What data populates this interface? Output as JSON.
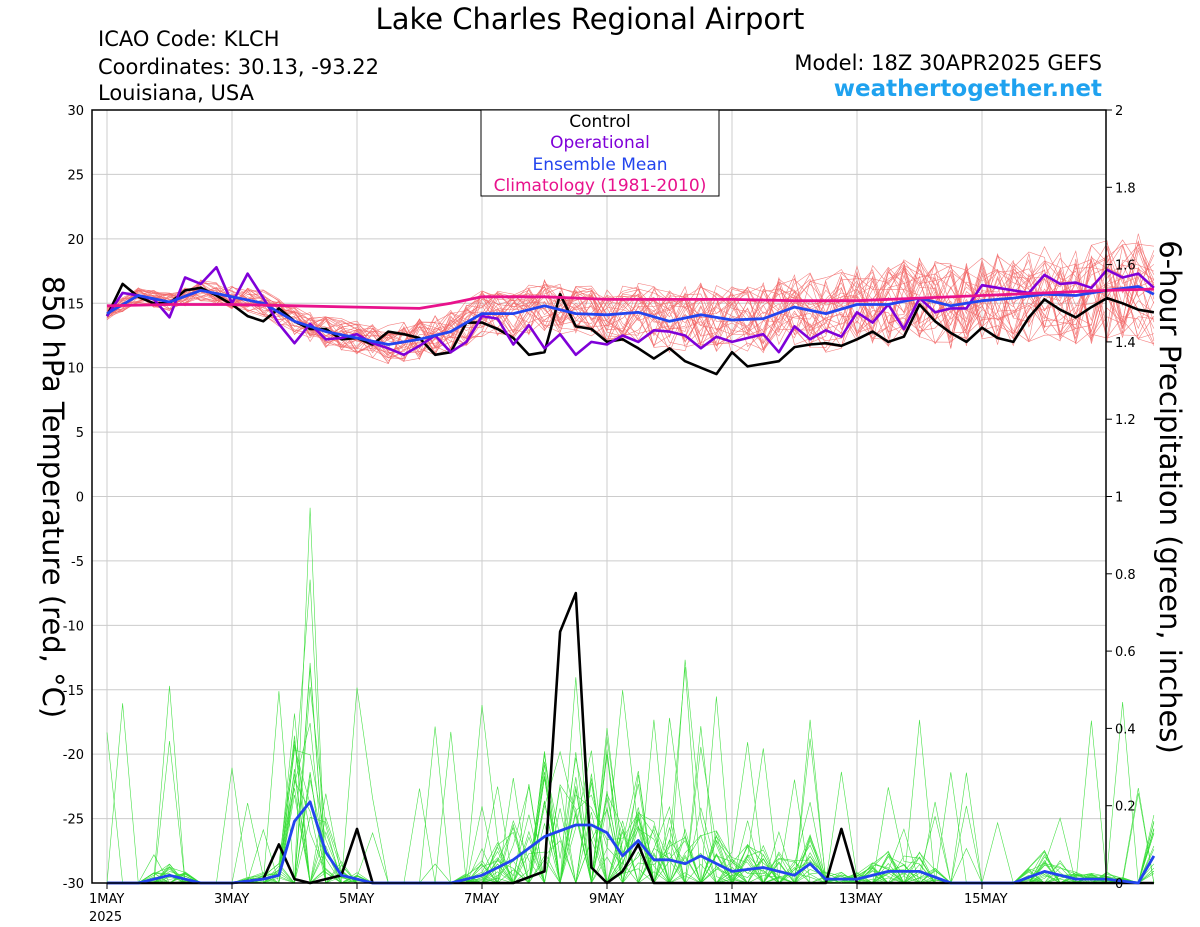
{
  "header": {
    "title": "Lake Charles Regional Airport",
    "icao": "ICAO Code: KLCH",
    "coordinates": "Coordinates: 30.13, -93.22",
    "location": "Louisiana, USA",
    "model": "Model: 18Z 30APR2025 GEFS",
    "site": "weathertogether.net"
  },
  "colors": {
    "control": "#000000",
    "operational": "#7f00d8",
    "ensemble_mean": "#2244ee",
    "climatology": "#e8128c",
    "members_temp": "#f26a6a",
    "members_precip": "#33dd33",
    "site": "#1fa2ef"
  },
  "chart_data": {
    "type": "line",
    "title": "Lake Charles Regional Airport",
    "ylabel": "850 hPa Temperature (red, °C)",
    "y2label": "6-hour Precipitation (green, inches)",
    "ylim": [
      -30,
      30
    ],
    "y2lim": [
      0,
      2
    ],
    "yticks": [
      "30",
      "25",
      "20",
      "15",
      "10",
      "5",
      "0",
      "-5",
      "-10",
      "-15",
      "-20",
      "-25",
      "-30"
    ],
    "y2ticks": [
      "2",
      "1.8",
      "1.6",
      "1.4",
      "1.2",
      "1",
      "0.8",
      "0.6",
      "0.4",
      "0.2",
      "0"
    ],
    "xticks": [
      "1MAY",
      "3MAY",
      "5MAY",
      "7MAY",
      "9MAY",
      "11MAY",
      "13MAY",
      "15MAY"
    ],
    "xyear": "2025",
    "xrange_days": [
      0,
      16
    ],
    "grid": true,
    "legend_position": "top-center",
    "legend": [
      {
        "name": "Control",
        "color": "#000000"
      },
      {
        "name": "Operational",
        "color": "#7f00d8"
      },
      {
        "name": "Ensemble Mean",
        "color": "#2244ee"
      },
      {
        "name": "Climatology (1981-2010)",
        "color": "#e8128c"
      }
    ],
    "series": [
      {
        "name": "Control",
        "axis": "temperature",
        "x_days": [
          0,
          0.25,
          0.5,
          0.75,
          1,
          1.25,
          1.5,
          1.75,
          2,
          2.25,
          2.5,
          2.75,
          3,
          3.25,
          3.5,
          3.75,
          4,
          4.25,
          4.5,
          4.75,
          5,
          5.25,
          5.5,
          5.75,
          6,
          6.25,
          6.5,
          6.75,
          7,
          7.25,
          7.5,
          7.75,
          8,
          8.25,
          8.5,
          8.75,
          9,
          9.25,
          9.5,
          9.75,
          10,
          10.25,
          10.5,
          10.75,
          11,
          11.25,
          11.5,
          11.75,
          12,
          12.25,
          12.5,
          12.75,
          13,
          13.25,
          13.5,
          13.75,
          14,
          14.25,
          14.5,
          14.75,
          15,
          15.25,
          15.5,
          15.75,
          16,
          16.25,
          16.5,
          16.75
        ],
        "values": [
          14.0,
          16.5,
          15.5,
          15.0,
          15.0,
          16.0,
          16.2,
          15.6,
          14.9,
          14.0,
          13.6,
          14.6,
          13.6,
          13.0,
          13.0,
          12.2,
          12.3,
          11.8,
          12.8,
          12.6,
          12.3,
          11.0,
          11.2,
          13.5,
          13.5,
          13.0,
          12.3,
          11.0,
          11.2,
          15.7,
          13.2,
          13.0,
          12.0,
          12.2,
          11.5,
          10.7,
          11.5,
          10.5,
          10.0,
          9.5,
          11.2,
          10.1,
          10.3,
          10.5,
          11.6,
          11.8,
          11.9,
          11.7,
          12.2,
          12.8,
          12.0,
          12.4,
          14.9,
          13.6,
          12.7,
          12.0,
          13.1,
          12.3,
          12.0,
          13.9,
          15.3,
          14.5,
          13.9,
          14.7,
          15.4,
          15.0,
          14.5,
          14.3
        ]
      },
      {
        "name": "Operational",
        "axis": "temperature",
        "x_days": [
          0,
          0.25,
          0.5,
          0.75,
          1,
          1.25,
          1.5,
          1.75,
          2,
          2.25,
          2.5,
          2.75,
          3,
          3.25,
          3.5,
          3.75,
          4,
          4.25,
          4.5,
          4.75,
          5,
          5.25,
          5.5,
          5.75,
          6,
          6.25,
          6.5,
          6.75,
          7,
          7.25,
          7.5,
          7.75,
          8,
          8.25,
          8.5,
          8.75,
          9,
          9.25,
          9.5,
          9.75,
          10,
          10.25,
          10.5,
          10.75,
          11,
          11.25,
          11.5,
          11.75,
          12,
          12.25,
          12.5,
          12.75,
          13,
          13.25,
          13.5,
          13.75,
          14,
          14.25,
          14.5,
          14.75,
          15,
          15.25,
          15.5,
          15.75,
          16,
          16.25,
          16.5,
          16.75
        ],
        "values": [
          14.0,
          15.8,
          15.6,
          15.3,
          13.9,
          17.0,
          16.5,
          17.8,
          15.0,
          17.3,
          15.4,
          13.4,
          11.9,
          13.4,
          12.2,
          12.3,
          12.6,
          11.9,
          11.5,
          11.0,
          11.7,
          12.5,
          11.2,
          12.0,
          14.0,
          13.8,
          11.8,
          13.3,
          11.5,
          12.6,
          11.0,
          12.0,
          11.8,
          12.5,
          12.0,
          12.9,
          12.8,
          12.5,
          11.5,
          12.4,
          12.0,
          12.3,
          12.6,
          11.2,
          13.2,
          12.2,
          12.9,
          12.4,
          14.3,
          13.5,
          14.9,
          13.0,
          15.4,
          14.3,
          14.6,
          14.6,
          16.4,
          16.2,
          16.0,
          15.8,
          17.2,
          16.5,
          16.6,
          16.2,
          17.6,
          17.0,
          17.3,
          16.2
        ]
      },
      {
        "name": "Ensemble Mean",
        "axis": "temperature",
        "x_days": [
          0,
          0.5,
          1,
          1.5,
          2,
          2.5,
          3,
          3.5,
          4,
          4.5,
          5,
          5.5,
          6,
          6.5,
          7,
          7.5,
          8,
          8.5,
          9,
          9.5,
          10,
          10.5,
          11,
          11.5,
          12,
          12.5,
          13,
          13.5,
          14,
          14.5,
          15,
          15.5,
          16,
          16.5,
          16.75
        ],
        "values": [
          14.2,
          15.6,
          15.1,
          16.0,
          15.5,
          15.0,
          13.6,
          12.8,
          12.3,
          11.8,
          12.2,
          12.8,
          14.2,
          14.2,
          14.8,
          14.2,
          14.1,
          14.3,
          13.6,
          14.1,
          13.7,
          13.8,
          14.7,
          14.2,
          14.9,
          14.9,
          15.4,
          14.8,
          15.2,
          15.4,
          15.7,
          15.6,
          16.0,
          16.3,
          15.7
        ]
      },
      {
        "name": "Climatology (1981-2010)",
        "axis": "temperature",
        "x_days": [
          0,
          1,
          2,
          3,
          4,
          5,
          5.5,
          6,
          7,
          8,
          9,
          10,
          11,
          12,
          13,
          14,
          15,
          16,
          16.75
        ],
        "values": [
          14.8,
          14.9,
          14.9,
          14.8,
          14.7,
          14.6,
          15.0,
          15.5,
          15.5,
          15.3,
          15.3,
          15.3,
          15.2,
          15.2,
          15.4,
          15.6,
          15.8,
          16.0,
          16.1
        ]
      },
      {
        "name": "Control",
        "axis": "precipitation",
        "x_days": [
          0,
          0.5,
          1,
          1.5,
          2,
          2.5,
          2.75,
          3,
          3.25,
          3.5,
          3.75,
          4,
          4.25,
          4.5,
          5,
          5.5,
          6,
          6.5,
          7,
          7.25,
          7.5,
          7.75,
          8,
          8.25,
          8.5,
          8.75,
          9,
          9.5,
          10,
          10.5,
          11,
          11.5,
          11.75,
          12,
          12.25,
          12.5,
          13,
          13.5,
          14,
          14.5,
          15,
          15.5,
          16,
          16.75
        ],
        "values": [
          0,
          0,
          0,
          0,
          0,
          0.01,
          0.1,
          0.01,
          0,
          0.01,
          0.02,
          0.14,
          0.0,
          0.0,
          0,
          0,
          0,
          0,
          0.03,
          0.65,
          0.75,
          0.04,
          0,
          0.03,
          0.1,
          0,
          0,
          0,
          0,
          0,
          0,
          0.0,
          0.14,
          0.0,
          0.0,
          0.0,
          0,
          0,
          0,
          0,
          0,
          0,
          0,
          0
        ]
      },
      {
        "name": "Ensemble Mean",
        "axis": "precipitation",
        "x_days": [
          0,
          0.5,
          1,
          1.5,
          2,
          2.5,
          2.75,
          3,
          3.25,
          3.5,
          3.75,
          4,
          4.25,
          4.5,
          5,
          5.5,
          6,
          6.5,
          7,
          7.5,
          7.75,
          8,
          8.25,
          8.5,
          8.75,
          9,
          9.25,
          9.5,
          10,
          10.5,
          11,
          11.25,
          11.5,
          12,
          12.5,
          13,
          13.5,
          14,
          14.5,
          15,
          15.5,
          16,
          16.5,
          16.75
        ],
        "values": [
          0,
          0,
          0.02,
          0,
          0,
          0.01,
          0.02,
          0.16,
          0.21,
          0.08,
          0.02,
          0.01,
          0,
          0,
          0,
          0,
          0.02,
          0.06,
          0.12,
          0.15,
          0.15,
          0.13,
          0.07,
          0.11,
          0.06,
          0.06,
          0.05,
          0.07,
          0.03,
          0.04,
          0.02,
          0.05,
          0.01,
          0.01,
          0.03,
          0.03,
          0.0,
          0.0,
          0.0,
          0.03,
          0.01,
          0.01,
          0.0,
          0.07
        ]
      }
    ]
  }
}
